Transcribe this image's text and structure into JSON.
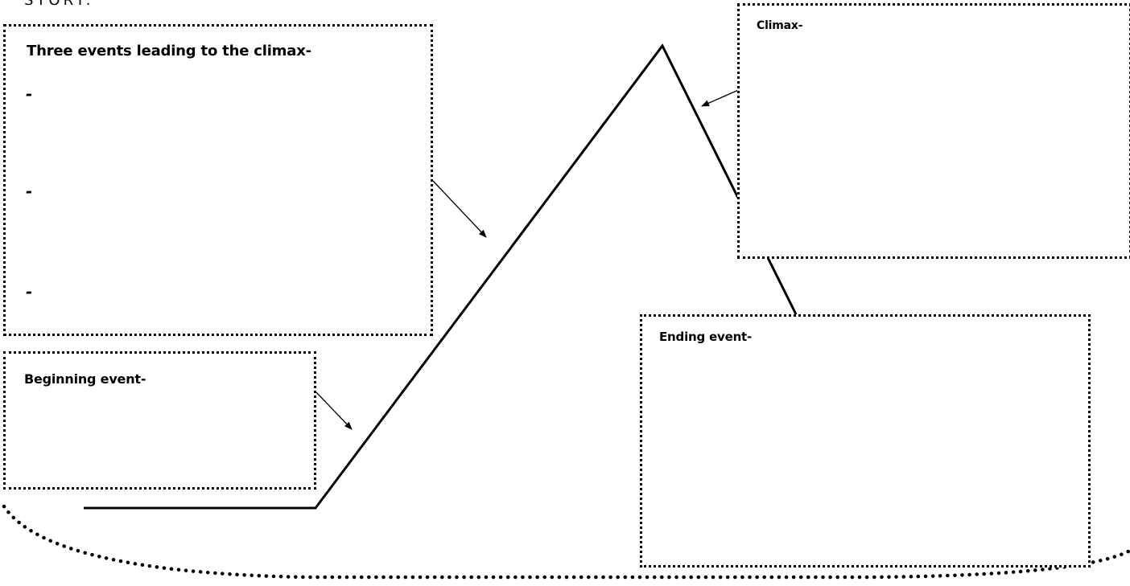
{
  "heading": {
    "partial_text": "STORY:"
  },
  "boxes": {
    "events": {
      "title": "Three events leading to the climax-",
      "bullets": [
        "-",
        "-",
        "-"
      ]
    },
    "beginning": {
      "title": "Beginning event-"
    },
    "climax": {
      "title": "Climax-"
    },
    "ending": {
      "title": "Ending event-"
    }
  },
  "colors": {
    "line": "#000000",
    "background": "#ffffff"
  }
}
